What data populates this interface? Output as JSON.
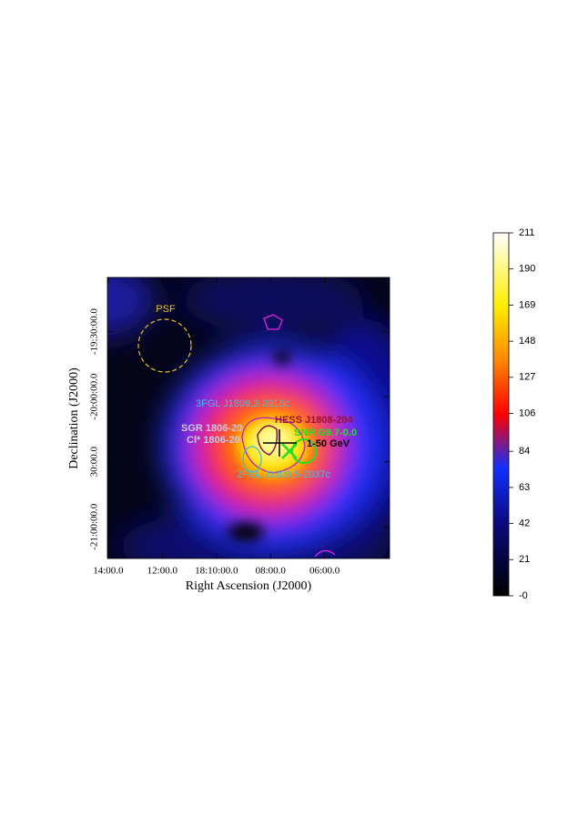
{
  "chart_data": {
    "type": "skymap",
    "x_label": "Right Ascension (J2000)",
    "y_label": "Declination (J2000)",
    "xlim": [
      14.03,
      3.6
    ],
    "xticks": [
      {
        "value": 14,
        "label": "14:00.0"
      },
      {
        "value": 12,
        "label": "12:00.0"
      },
      {
        "value": 10,
        "label": "18:10:00.0"
      },
      {
        "value": 8,
        "label": "08:00.0"
      },
      {
        "value": 6,
        "label": "06:00.0"
      }
    ],
    "ylim": [
      -21.243,
      -19.083
    ],
    "yticks": [
      {
        "value": -19.5,
        "label": "-19:30:00.0"
      },
      {
        "value": -20,
        "label": "-20:00:00.0"
      },
      {
        "value": -20.5,
        "label": "30:00.0"
      },
      {
        "value": -21,
        "label": "-21:00:00.0"
      }
    ],
    "colorbar": {
      "lim": [
        0,
        211
      ],
      "ticks": [
        211,
        190,
        169,
        148,
        127,
        106,
        84,
        63,
        42,
        21,
        {
          "value": 0,
          "label": "-0"
        }
      ]
    },
    "annotations": {
      "psf": "PSF",
      "fgl3": "3FGL J1809.2-2016c",
      "hess": "HESS J1808-204",
      "snr": "SNR G9.7-0.0",
      "sgr": "SGR 1806-20",
      "cl": "Cl* 1806-20",
      "energy": "1-50 GeV",
      "fgl2": "2FGL J1808.5-2037c"
    }
  }
}
